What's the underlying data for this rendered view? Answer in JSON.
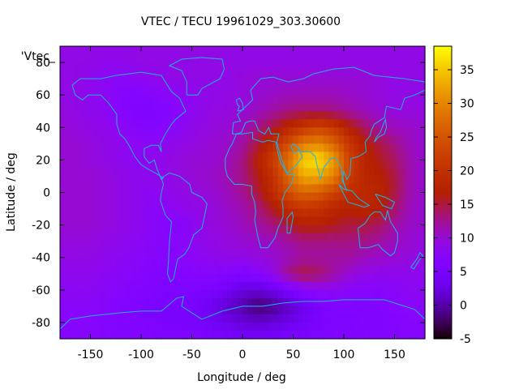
{
  "chart_data": {
    "type": "heatmap",
    "title": "VTEC / TECU 19961029_303.30600",
    "xlabel": "Longitude / deg",
    "ylabel": "Latitude / deg",
    "xlim": [
      -180,
      180
    ],
    "ylim": [
      -90,
      90
    ],
    "x_ticks": [
      -150,
      -100,
      -50,
      0,
      50,
      100,
      150
    ],
    "y_ticks": [
      -80,
      -60,
      -40,
      -20,
      0,
      20,
      40,
      60,
      80
    ],
    "key_label": "'Vtec_",
    "colorbar": {
      "min": -5,
      "max": 38.5,
      "ticks": [
        -5,
        0,
        5,
        10,
        15,
        20,
        25,
        30,
        35
      ],
      "palette": "black-purple-red-orange-yellow"
    },
    "grid": false,
    "lon": [
      -180,
      -165,
      -150,
      -135,
      -120,
      -105,
      -90,
      -75,
      -60,
      -45,
      -30,
      -15,
      0,
      15,
      30,
      45,
      60,
      75,
      90,
      105,
      120,
      135,
      150,
      165,
      180
    ],
    "lat": [
      90,
      80,
      70,
      60,
      50,
      40,
      30,
      20,
      10,
      0,
      -10,
      -20,
      -30,
      -40,
      -50,
      -60,
      -70,
      -80,
      -90
    ],
    "vtec": [
      [
        9,
        9,
        9,
        9,
        9,
        9,
        9,
        9,
        9,
        9,
        9,
        9,
        9,
        9,
        9,
        9,
        9,
        9,
        9,
        9,
        9,
        9,
        9,
        9,
        9
      ],
      [
        9,
        9,
        9,
        8.5,
        8.5,
        9,
        9,
        9,
        9,
        9,
        9,
        9,
        9,
        9,
        9,
        9,
        9,
        9,
        9,
        9,
        9,
        9,
        9,
        9,
        9
      ],
      [
        9,
        9,
        8.5,
        8,
        7.5,
        8,
        8.5,
        9,
        9,
        9,
        9,
        9,
        9.5,
        10,
        10,
        10,
        10,
        10,
        10,
        10,
        10,
        9.5,
        9,
        9,
        9
      ],
      [
        9,
        9,
        8.5,
        8,
        7,
        6.5,
        7,
        7.5,
        8,
        8.5,
        9,
        9,
        9.5,
        10,
        10.5,
        11,
        11,
        11,
        11,
        10.5,
        10,
        9.5,
        9,
        9,
        9
      ],
      [
        9.5,
        9,
        8.5,
        8,
        7,
        6,
        6,
        6.5,
        7.5,
        8.5,
        9,
        9.5,
        10,
        11,
        12,
        13,
        13.5,
        13.5,
        13,
        12,
        11,
        10,
        9.5,
        9.5,
        9.5
      ],
      [
        10,
        9.5,
        9,
        8.5,
        8,
        7,
        6.5,
        7,
        8,
        9,
        9.5,
        10,
        11,
        13,
        15,
        18,
        21,
        23,
        21,
        17,
        14,
        12,
        11,
        10.5,
        10
      ],
      [
        10,
        10,
        9.5,
        9,
        8.5,
        8,
        8,
        8.5,
        9,
        9.5,
        10,
        10.5,
        12,
        15,
        19,
        24,
        29,
        30,
        27,
        21,
        17,
        15,
        13,
        11,
        10
      ],
      [
        10,
        10,
        9.5,
        9,
        8.5,
        8,
        8.5,
        9,
        9.5,
        10,
        10,
        11,
        13,
        17,
        22,
        28,
        36,
        37,
        32,
        23,
        18,
        16,
        14,
        11.5,
        10
      ],
      [
        10,
        10,
        10,
        9.5,
        9,
        8.5,
        8.5,
        9,
        9.5,
        10,
        10.5,
        11.5,
        13,
        16,
        20,
        27,
        33,
        33,
        30,
        22,
        18,
        17,
        15,
        11.5,
        10
      ],
      [
        10,
        10,
        10,
        9.5,
        9,
        8.5,
        8,
        8.5,
        9,
        9.5,
        10,
        11,
        12.5,
        15,
        19,
        24,
        27,
        26,
        23,
        19,
        19,
        18,
        15,
        11.5,
        10
      ],
      [
        10,
        10,
        10,
        9.5,
        9,
        8.5,
        7.5,
        8,
        8.5,
        9,
        9.5,
        10.5,
        11.5,
        13,
        16,
        19,
        21,
        20,
        18,
        17,
        18,
        17,
        14,
        11,
        10
      ],
      [
        10,
        10,
        10,
        9.5,
        9,
        8.5,
        7.5,
        6.5,
        7,
        8.5,
        9.5,
        10,
        11,
        12,
        13,
        15,
        17,
        17,
        16,
        15,
        15,
        14,
        12,
        10.5,
        10
      ],
      [
        9.5,
        9.5,
        9.5,
        9,
        8.5,
        8,
        7.5,
        7,
        7.5,
        8.5,
        9,
        9.5,
        10,
        10.5,
        11,
        12,
        13,
        13,
        13,
        13,
        13,
        12,
        11,
        10,
        9.5
      ],
      [
        9,
        9,
        9,
        8.5,
        8,
        7.5,
        7,
        7,
        7.5,
        8,
        8.5,
        9,
        9,
        9.5,
        10,
        11,
        12,
        12,
        12,
        12,
        11,
        10.5,
        10,
        9.5,
        9
      ],
      [
        8.5,
        8.5,
        8.5,
        8,
        7.5,
        7,
        6.5,
        6,
        6.5,
        7,
        7,
        6.5,
        6,
        7,
        9,
        13,
        15,
        14,
        12,
        10,
        9,
        8.5,
        8.5,
        8.5,
        8.5
      ],
      [
        8,
        8,
        8,
        7.5,
        7,
        6.5,
        6,
        5.5,
        5.5,
        5.5,
        5,
        4,
        2.5,
        2,
        3,
        5,
        7,
        8,
        8,
        7.5,
        7,
        7,
        7.5,
        8,
        8
      ],
      [
        7.5,
        7.5,
        7.5,
        7,
        6.5,
        6,
        5.5,
        5,
        5,
        4.5,
        3.5,
        1.5,
        0,
        -2,
        -1,
        1,
        3,
        5,
        6,
        6,
        6,
        6.5,
        7,
        7.5,
        7.5
      ],
      [
        7,
        7,
        7,
        6.5,
        6,
        6,
        5.5,
        5,
        5,
        4.5,
        4,
        3,
        2,
        1.5,
        2,
        3,
        4,
        5,
        5.5,
        5.5,
        6,
        6,
        6.5,
        7,
        7
      ],
      [
        7,
        7,
        7,
        7,
        6.5,
        6.5,
        6,
        6,
        6,
        6,
        5.5,
        5,
        5,
        5,
        5,
        5.5,
        5.5,
        6,
        6,
        6,
        6.5,
        6.5,
        7,
        7,
        7
      ]
    ],
    "coastline_color": "#1fb4e8"
  }
}
